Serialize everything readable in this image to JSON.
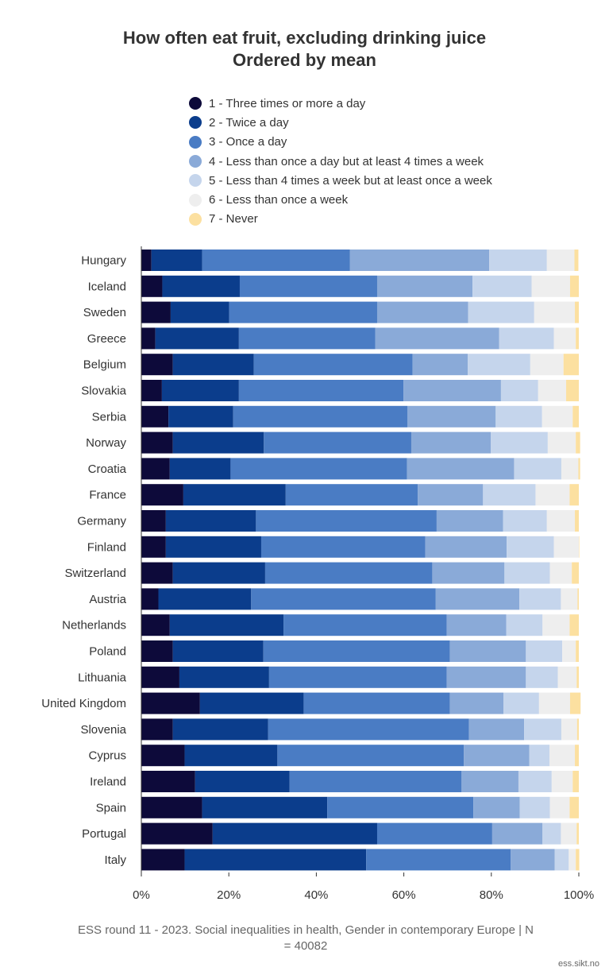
{
  "chart_data": {
    "type": "bar",
    "orientation": "horizontal",
    "stacked": true,
    "title": "How often eat fruit, excluding drinking juice",
    "subtitle": "Ordered by mean",
    "xlabel": "",
    "ylabel": "",
    "xlim": [
      0,
      100
    ],
    "x_ticks": [
      "0%",
      "20%",
      "40%",
      "60%",
      "80%",
      "100%"
    ],
    "legend_position": "top",
    "categories": [
      "Hungary",
      "Iceland",
      "Sweden",
      "Greece",
      "Belgium",
      "Slovakia",
      "Serbia",
      "Norway",
      "Croatia",
      "France",
      "Germany",
      "Finland",
      "Switzerland",
      "Austria",
      "Netherlands",
      "Poland",
      "Lithuania",
      "United Kingdom",
      "Slovenia",
      "Cyprus",
      "Ireland",
      "Spain",
      "Portugal",
      "Italy"
    ],
    "series": [
      {
        "name": "1 - Three times or more a day",
        "color": "#0d0a3a",
        "values": [
          2.3,
          4.8,
          6.7,
          3.2,
          7.2,
          4.7,
          6.2,
          7.2,
          6.5,
          9.6,
          5.6,
          5.6,
          7.2,
          3.9,
          6.5,
          7.2,
          8.7,
          13.4,
          7.2,
          9.9,
          12.3,
          13.9,
          16.3,
          9.9
        ]
      },
      {
        "name": "2 - Twice a day",
        "color": "#0b3d8c",
        "values": [
          11.6,
          17.7,
          13.4,
          19.1,
          18.5,
          17.6,
          14.8,
          20.8,
          13.9,
          23.4,
          20.6,
          21.8,
          21.1,
          21.2,
          26.0,
          20.7,
          20.5,
          23.7,
          21.8,
          21.2,
          21.6,
          28.6,
          37.6,
          41.5
        ]
      },
      {
        "name": "3 - Once a day",
        "color": "#4a7cc4",
        "values": [
          33.8,
          31.4,
          33.8,
          31.2,
          36.3,
          37.6,
          39.8,
          33.7,
          40.3,
          30.2,
          41.3,
          37.5,
          38.2,
          42.2,
          37.3,
          42.6,
          40.6,
          33.4,
          45.9,
          42.6,
          39.3,
          33.4,
          26.3,
          33.0
        ]
      },
      {
        "name": "4 - Less than once a day but at least 4 times a week",
        "color": "#8aaad8",
        "values": [
          31.8,
          21.8,
          20.8,
          28.3,
          12.6,
          22.3,
          20.2,
          18.2,
          24.5,
          14.9,
          15.2,
          18.6,
          16.5,
          19.1,
          13.6,
          17.4,
          18.1,
          12.3,
          12.6,
          15.0,
          13.0,
          10.6,
          11.5,
          10.1
        ]
      },
      {
        "name": "5 - Less than 4 times a week but at least once a week",
        "color": "#c5d5ec",
        "values": [
          13.2,
          13.5,
          15.1,
          12.5,
          14.3,
          8.5,
          10.6,
          13.0,
          10.8,
          12.0,
          10.0,
          10.8,
          10.4,
          9.5,
          8.3,
          8.3,
          7.3,
          8.1,
          8.5,
          4.6,
          7.6,
          6.9,
          4.2,
          3.2
        ]
      },
      {
        "name": "6 - Less than once a week",
        "color": "#eeeeee",
        "values": [
          6.3,
          8.8,
          9.3,
          5.0,
          7.6,
          6.4,
          7.0,
          6.4,
          3.9,
          7.8,
          6.4,
          5.7,
          5.0,
          3.8,
          6.2,
          3.1,
          4.3,
          7.1,
          3.6,
          5.8,
          4.8,
          4.5,
          3.6,
          1.6
        ]
      },
      {
        "name": "7 - Never",
        "color": "#fce0a0",
        "values": [
          0.9,
          2.0,
          0.9,
          0.7,
          3.5,
          2.9,
          1.4,
          1.0,
          0.4,
          2.1,
          0.9,
          0.1,
          1.6,
          0.3,
          2.1,
          0.7,
          0.5,
          2.4,
          0.4,
          0.9,
          1.4,
          2.1,
          0.5,
          0.8
        ]
      }
    ]
  },
  "footer": {
    "source_line1": "ESS round 11 - 2023. Social inequalities in health, Gender in contemporary Europe | N",
    "source_line2": "= 40082",
    "credit": "ess.sikt.no"
  }
}
